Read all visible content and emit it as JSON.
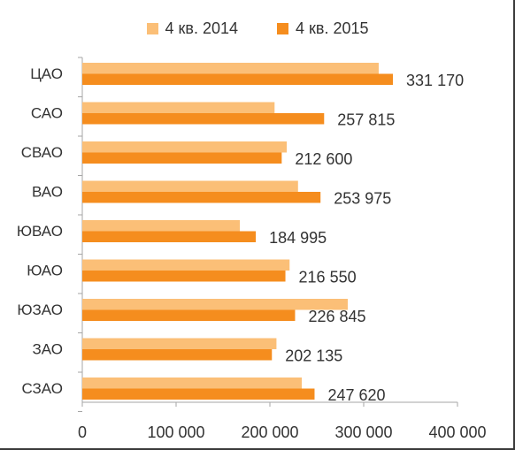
{
  "chart_data": {
    "type": "bar",
    "orientation": "horizontal",
    "categories": [
      "ЦАО",
      "САО",
      "СВАО",
      "ВАО",
      "ЮВАО",
      "ЮАО",
      "ЮЗАО",
      "ЗАО",
      "СЗАО"
    ],
    "series": [
      {
        "name": "4 кв. 2014",
        "color": "#fbbf77",
        "values": [
          316000,
          205000,
          218000,
          230000,
          168000,
          221000,
          283000,
          207000,
          234000
        ]
      },
      {
        "name": "4 кв. 2015",
        "color": "#f58d1e",
        "values": [
          331170,
          257815,
          212600,
          253975,
          184995,
          216550,
          226845,
          202135,
          247620
        ],
        "data_labels": [
          "331 170",
          "257 815",
          "212 600",
          "253 975",
          "184 995",
          "216 550",
          "226 845",
          "202 135",
          "247 620"
        ]
      }
    ],
    "xlim": [
      0,
      400000
    ],
    "xticks": [
      0,
      100000,
      200000,
      300000,
      400000
    ],
    "xtick_labels": [
      "0",
      "100 000",
      "200 000",
      "300 000",
      "400 000"
    ],
    "legend_position": "top",
    "grid": false
  }
}
